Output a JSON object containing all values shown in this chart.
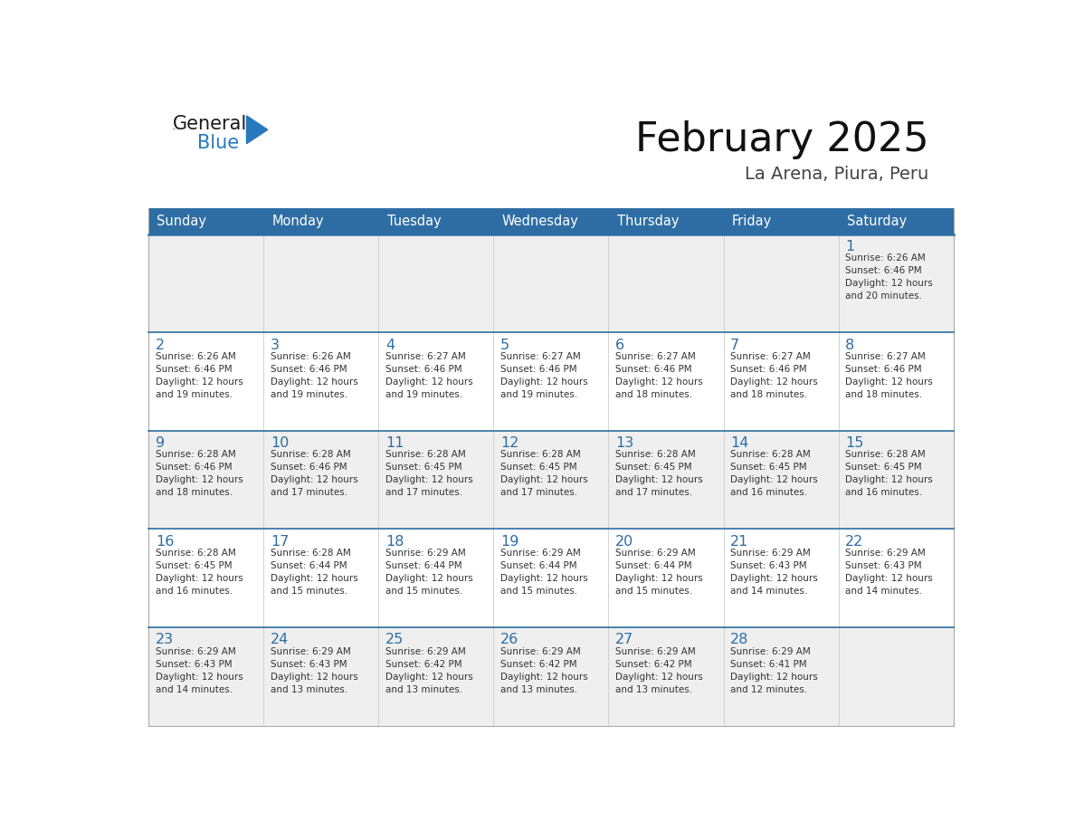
{
  "title": "February 2025",
  "subtitle": "La Arena, Piura, Peru",
  "header_bg_color": "#2E6DA4",
  "header_text_color": "#FFFFFF",
  "cell_bg_light": "#EFEFEF",
  "cell_bg_white": "#FFFFFF",
  "day_number_color": "#2E6DA4",
  "info_text_color": "#333333",
  "border_color": "#CCCCCC",
  "week_sep_color": "#2E6DA4",
  "days_of_week": [
    "Sunday",
    "Monday",
    "Tuesday",
    "Wednesday",
    "Thursday",
    "Friday",
    "Saturday"
  ],
  "weeks": [
    [
      {
        "day": null,
        "info": null
      },
      {
        "day": null,
        "info": null
      },
      {
        "day": null,
        "info": null
      },
      {
        "day": null,
        "info": null
      },
      {
        "day": null,
        "info": null
      },
      {
        "day": null,
        "info": null
      },
      {
        "day": 1,
        "info": "Sunrise: 6:26 AM\nSunset: 6:46 PM\nDaylight: 12 hours\nand 20 minutes."
      }
    ],
    [
      {
        "day": 2,
        "info": "Sunrise: 6:26 AM\nSunset: 6:46 PM\nDaylight: 12 hours\nand 19 minutes."
      },
      {
        "day": 3,
        "info": "Sunrise: 6:26 AM\nSunset: 6:46 PM\nDaylight: 12 hours\nand 19 minutes."
      },
      {
        "day": 4,
        "info": "Sunrise: 6:27 AM\nSunset: 6:46 PM\nDaylight: 12 hours\nand 19 minutes."
      },
      {
        "day": 5,
        "info": "Sunrise: 6:27 AM\nSunset: 6:46 PM\nDaylight: 12 hours\nand 19 minutes."
      },
      {
        "day": 6,
        "info": "Sunrise: 6:27 AM\nSunset: 6:46 PM\nDaylight: 12 hours\nand 18 minutes."
      },
      {
        "day": 7,
        "info": "Sunrise: 6:27 AM\nSunset: 6:46 PM\nDaylight: 12 hours\nand 18 minutes."
      },
      {
        "day": 8,
        "info": "Sunrise: 6:27 AM\nSunset: 6:46 PM\nDaylight: 12 hours\nand 18 minutes."
      }
    ],
    [
      {
        "day": 9,
        "info": "Sunrise: 6:28 AM\nSunset: 6:46 PM\nDaylight: 12 hours\nand 18 minutes."
      },
      {
        "day": 10,
        "info": "Sunrise: 6:28 AM\nSunset: 6:46 PM\nDaylight: 12 hours\nand 17 minutes."
      },
      {
        "day": 11,
        "info": "Sunrise: 6:28 AM\nSunset: 6:45 PM\nDaylight: 12 hours\nand 17 minutes."
      },
      {
        "day": 12,
        "info": "Sunrise: 6:28 AM\nSunset: 6:45 PM\nDaylight: 12 hours\nand 17 minutes."
      },
      {
        "day": 13,
        "info": "Sunrise: 6:28 AM\nSunset: 6:45 PM\nDaylight: 12 hours\nand 17 minutes."
      },
      {
        "day": 14,
        "info": "Sunrise: 6:28 AM\nSunset: 6:45 PM\nDaylight: 12 hours\nand 16 minutes."
      },
      {
        "day": 15,
        "info": "Sunrise: 6:28 AM\nSunset: 6:45 PM\nDaylight: 12 hours\nand 16 minutes."
      }
    ],
    [
      {
        "day": 16,
        "info": "Sunrise: 6:28 AM\nSunset: 6:45 PM\nDaylight: 12 hours\nand 16 minutes."
      },
      {
        "day": 17,
        "info": "Sunrise: 6:28 AM\nSunset: 6:44 PM\nDaylight: 12 hours\nand 15 minutes."
      },
      {
        "day": 18,
        "info": "Sunrise: 6:29 AM\nSunset: 6:44 PM\nDaylight: 12 hours\nand 15 minutes."
      },
      {
        "day": 19,
        "info": "Sunrise: 6:29 AM\nSunset: 6:44 PM\nDaylight: 12 hours\nand 15 minutes."
      },
      {
        "day": 20,
        "info": "Sunrise: 6:29 AM\nSunset: 6:44 PM\nDaylight: 12 hours\nand 15 minutes."
      },
      {
        "day": 21,
        "info": "Sunrise: 6:29 AM\nSunset: 6:43 PM\nDaylight: 12 hours\nand 14 minutes."
      },
      {
        "day": 22,
        "info": "Sunrise: 6:29 AM\nSunset: 6:43 PM\nDaylight: 12 hours\nand 14 minutes."
      }
    ],
    [
      {
        "day": 23,
        "info": "Sunrise: 6:29 AM\nSunset: 6:43 PM\nDaylight: 12 hours\nand 14 minutes."
      },
      {
        "day": 24,
        "info": "Sunrise: 6:29 AM\nSunset: 6:43 PM\nDaylight: 12 hours\nand 13 minutes."
      },
      {
        "day": 25,
        "info": "Sunrise: 6:29 AM\nSunset: 6:42 PM\nDaylight: 12 hours\nand 13 minutes."
      },
      {
        "day": 26,
        "info": "Sunrise: 6:29 AM\nSunset: 6:42 PM\nDaylight: 12 hours\nand 13 minutes."
      },
      {
        "day": 27,
        "info": "Sunrise: 6:29 AM\nSunset: 6:42 PM\nDaylight: 12 hours\nand 13 minutes."
      },
      {
        "day": 28,
        "info": "Sunrise: 6:29 AM\nSunset: 6:41 PM\nDaylight: 12 hours\nand 12 minutes."
      },
      {
        "day": null,
        "info": null
      }
    ]
  ],
  "logo_color_general": "#1a1a1a",
  "logo_color_blue": "#2878BE",
  "logo_triangle_color": "#2878BE"
}
